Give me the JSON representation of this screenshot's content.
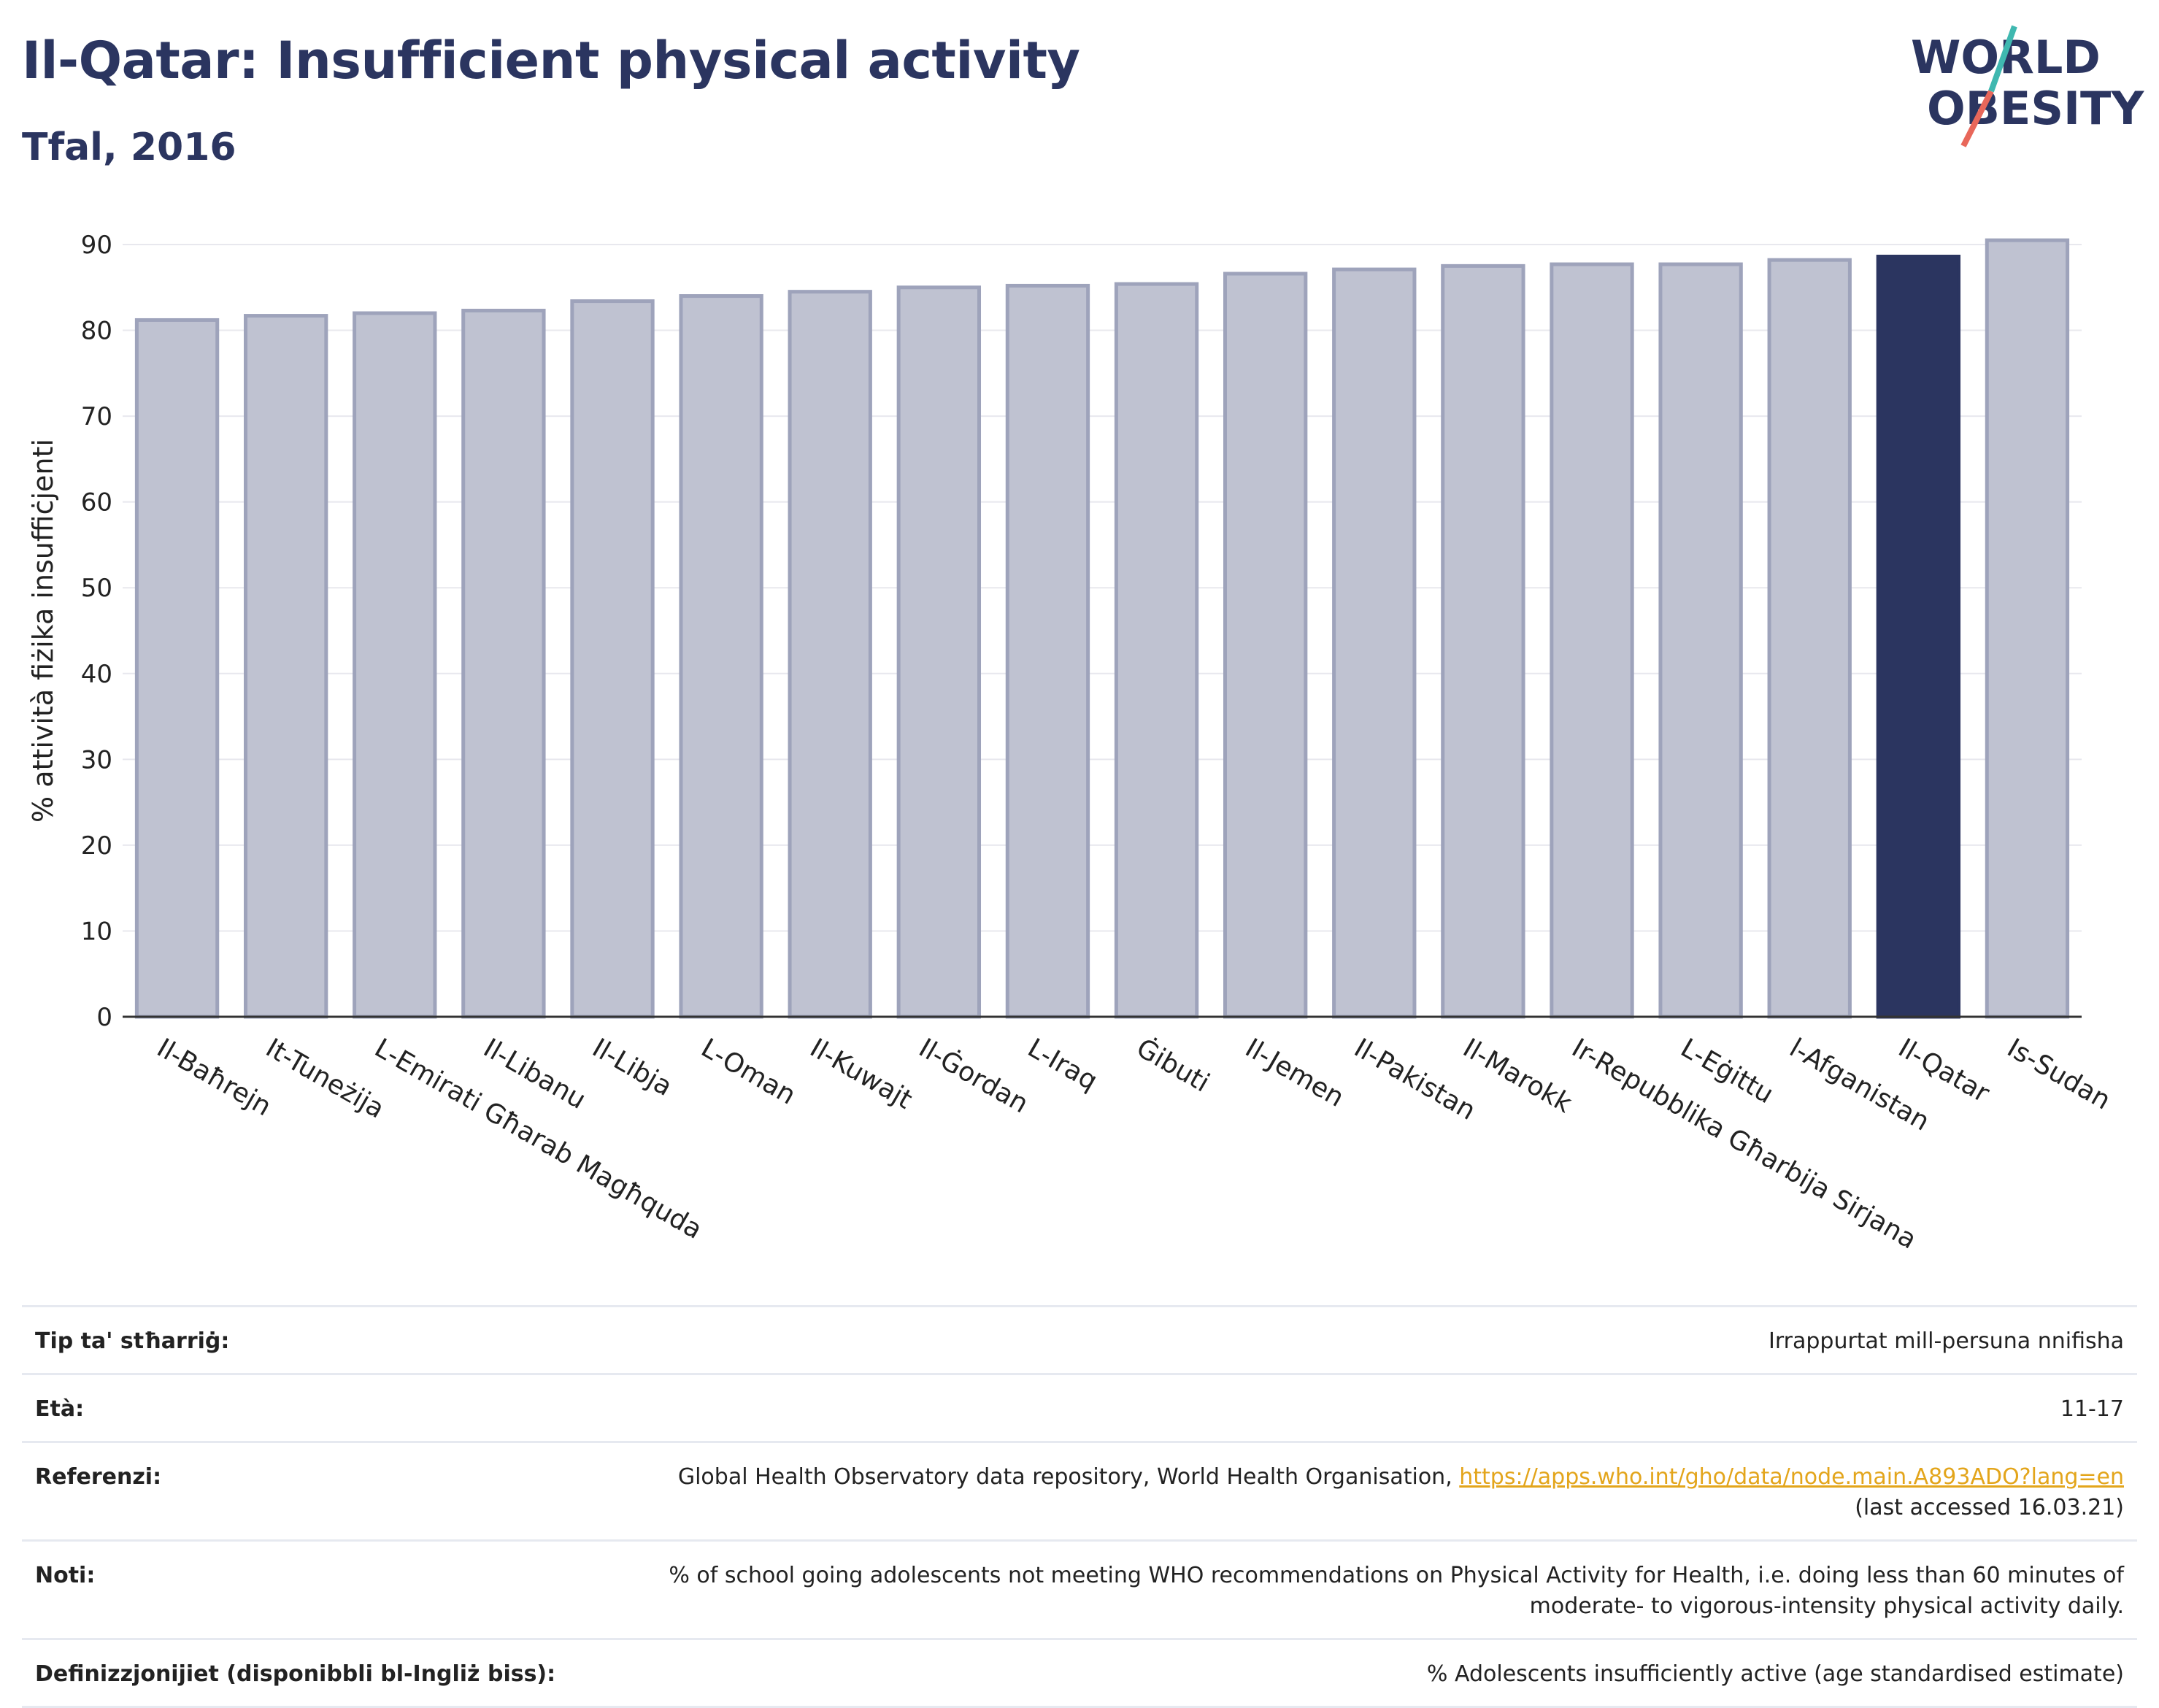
{
  "header": {
    "title": "Il-Qatar: Insufficient physical activity",
    "subtitle": "Tfal, 2016"
  },
  "logo": {
    "line1": "WORLD",
    "line2": "OBESITY"
  },
  "colors": {
    "bar": "#bfc2d1",
    "bar_stroke": "#9ea3bb",
    "highlight": "#2b3560",
    "grid": "#e8e8ee",
    "title": "#2b3560",
    "link": "#e3a51b"
  },
  "chart_data": {
    "type": "bar",
    "ylabel": "% attività fiżika insuffiċjenti",
    "ylim": [
      0,
      90
    ],
    "yticks": [
      0,
      10,
      20,
      30,
      40,
      50,
      60,
      70,
      80,
      90
    ],
    "grid": true,
    "highlight": "Il-Qatar",
    "categories": [
      "Il-Baħrejn",
      "It-Tuneżija",
      "L-Emirati Għarab Magħquda",
      "Il-Libanu",
      "Il-Libja",
      "L-Oman",
      "Il-Kuwajt",
      "Il-Ġordan",
      "L-Iraq",
      "Ġibuti",
      "Il-Jemen",
      "Il-Pakistan",
      "Il-Marokk",
      "Ir-Repubblika Għarbija Sirjana",
      "L-Eġittu",
      "l-Afganistan",
      "Il-Qatar",
      "Is-Sudan"
    ],
    "values": [
      81.2,
      81.7,
      82.0,
      82.3,
      83.4,
      84.0,
      84.5,
      85.0,
      85.2,
      85.4,
      86.6,
      87.1,
      87.5,
      87.7,
      87.7,
      88.2,
      88.6,
      90.5
    ]
  },
  "info": {
    "rows": [
      {
        "key": "Tip ta' stħarriġ:",
        "value": "Irrappurtat mill-persuna nnifisha"
      },
      {
        "key": "Età:",
        "value": "11-17"
      },
      {
        "key": "Referenzi:",
        "value": "Global Health Observatory data repository, World Health Organisation, ",
        "link": "https://apps.who.int/gho/data/node.main.A893ADO?lang=en",
        "value2": "(last accessed 16.03.21)"
      },
      {
        "key": "Noti:",
        "value": "% of school going adolescents not meeting WHO recommendations on Physical Activity for Health, i.e. doing less than 60 minutes of moderate- to vigorous-intensity physical activity daily."
      },
      {
        "key": "Definizzjonijiet (disponibbli bl-Ingliż biss):",
        "value": "% Adolescents insufficiently active (age standardised estimate)"
      }
    ]
  }
}
